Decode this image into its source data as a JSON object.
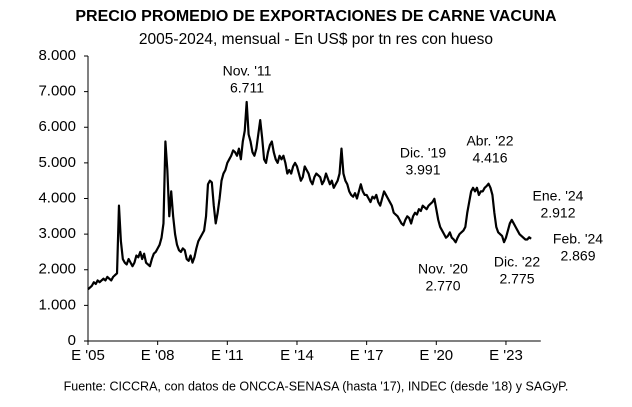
{
  "chart_data": {
    "type": "line",
    "title": "PRECIO PROMEDIO DE EXPORTACIONES DE CARNE VACUNA",
    "subtitle": "2005-2024, mensual - En US$ por tn res con hueso",
    "source": "Fuente: CICCRA, con datos de ONCCA-SENASA (hasta '17), INDEC (desde '18) y SAGyP.",
    "x": [
      0,
      1,
      2,
      3,
      4,
      5,
      6,
      7,
      8,
      9,
      10,
      11,
      12,
      13,
      14,
      15,
      16,
      17,
      18,
      19,
      20,
      21,
      22,
      23,
      24,
      25,
      26,
      27,
      28,
      29,
      30,
      31,
      32,
      33,
      34,
      35,
      36,
      37,
      38,
      39,
      40,
      41,
      42,
      43,
      44,
      45,
      46,
      47,
      48,
      49,
      50,
      51,
      52,
      53,
      54,
      55,
      56,
      57,
      58,
      59,
      60,
      61,
      62,
      63,
      64,
      65,
      66,
      67,
      68,
      69,
      70,
      71,
      72,
      73,
      74,
      75,
      76,
      77,
      78,
      79,
      80,
      81,
      82,
      83,
      84,
      85,
      86,
      87,
      88,
      89,
      90,
      91,
      92,
      93,
      94,
      95,
      96,
      97,
      98,
      99,
      100,
      101,
      102,
      103,
      104,
      105,
      106,
      107,
      108,
      109,
      110,
      111,
      112,
      113,
      114,
      115,
      116,
      117,
      118,
      119,
      120,
      121,
      122,
      123,
      124,
      125,
      126,
      127,
      128,
      129,
      130,
      131,
      132,
      133,
      134,
      135,
      136,
      137,
      138,
      139,
      140,
      141,
      142,
      143,
      144,
      145,
      146,
      147,
      148,
      149,
      150,
      151,
      152,
      153,
      154,
      155,
      156,
      157,
      158,
      159,
      160,
      161,
      162,
      163,
      164,
      165,
      166,
      167,
      168,
      169,
      170,
      171,
      172,
      173,
      174,
      175,
      176,
      177,
      178,
      179,
      180,
      181,
      182,
      183,
      184,
      185,
      186,
      187,
      188,
      189,
      190,
      191,
      192,
      193,
      194,
      195,
      196,
      197,
      198,
      199,
      200,
      201,
      202,
      203,
      204,
      205,
      206,
      207,
      208,
      209,
      210,
      211,
      212,
      213,
      214,
      215,
      216,
      217,
      218,
      219,
      220,
      221,
      222,
      223,
      224,
      225,
      226,
      227,
      228,
      229
    ],
    "series": [
      {
        "color": "#000000",
        "values": [
          1450,
          1500,
          1550,
          1650,
          1600,
          1700,
          1650,
          1700,
          1750,
          1700,
          1800,
          1750,
          1700,
          1800,
          1850,
          1900,
          3800,
          2800,
          2300,
          2200,
          2150,
          2300,
          2200,
          2100,
          2200,
          2400,
          2350,
          2500,
          2300,
          2450,
          2200,
          2150,
          2100,
          2300,
          2450,
          2500,
          2600,
          2700,
          2900,
          3300,
          5600,
          4800,
          3500,
          4200,
          3500,
          3000,
          2700,
          2550,
          2500,
          2600,
          2550,
          2300,
          2250,
          2400,
          2200,
          2350,
          2600,
          2800,
          2900,
          3000,
          3100,
          3500,
          4400,
          4500,
          4450,
          3800,
          3300,
          3600,
          4000,
          4500,
          4700,
          4800,
          5000,
          5100,
          5200,
          5350,
          5300,
          5200,
          5400,
          5100,
          5600,
          5900,
          6711,
          5800,
          5600,
          5300,
          5200,
          5400,
          5800,
          6200,
          5700,
          5100,
          5000,
          5300,
          5500,
          5600,
          5300,
          5100,
          5000,
          5200,
          5100,
          5200,
          5000,
          4700,
          4800,
          4700,
          4900,
          5000,
          4900,
          4700,
          4500,
          4600,
          4900,
          4800,
          4700,
          4500,
          4400,
          4600,
          4700,
          4650,
          4600,
          4400,
          4500,
          4700,
          4550,
          4400,
          4500,
          4300,
          4400,
          4500,
          4700,
          5400,
          4700,
          4500,
          4400,
          4200,
          4100,
          4050,
          4150,
          4000,
          4200,
          4400,
          4200,
          4100,
          4100,
          4000,
          3900,
          4050,
          4000,
          4100,
          3900,
          3800,
          4000,
          4200,
          4100,
          4000,
          3900,
          3800,
          3600,
          3550,
          3500,
          3400,
          3300,
          3250,
          3400,
          3500,
          3450,
          3300,
          3500,
          3600,
          3550,
          3700,
          3650,
          3800,
          3750,
          3700,
          3800,
          3850,
          3900,
          3991,
          3700,
          3400,
          3200,
          3100,
          3000,
          2900,
          2950,
          3050,
          2900,
          2850,
          2770,
          2900,
          3000,
          3050,
          3100,
          3200,
          3600,
          3900,
          4200,
          4300,
          4200,
          4300,
          4100,
          4200,
          4200,
          4300,
          4350,
          4416,
          4300,
          4100,
          3600,
          3200,
          3050,
          3000,
          2950,
          2775,
          2900,
          3100,
          3300,
          3400,
          3300,
          3200,
          3100,
          3000,
          2950,
          2900,
          2850,
          2850,
          2912,
          2869
        ]
      }
    ],
    "annotations": [
      {
        "x": 82,
        "label": "Nov. '11",
        "value_label": "6.711"
      },
      {
        "x": 179,
        "label": "Dic. '19",
        "value_label": "3.991"
      },
      {
        "x": 190,
        "label": "Nov. '20",
        "value_label": "2.770"
      },
      {
        "x": 207,
        "label": "Abr. '22",
        "value_label": "4.416"
      },
      {
        "x": 215,
        "label": "Dic. '22",
        "value_label": "2.775"
      },
      {
        "x": 228,
        "label": "Ene. '24",
        "value_label": "2.912"
      },
      {
        "x": 229,
        "label": "Feb. '24",
        "value_label": "2.869"
      }
    ],
    "xlim": [
      0,
      234
    ],
    "xticks": [
      {
        "value": 0,
        "label": "E '05"
      },
      {
        "value": 36,
        "label": "E '08"
      },
      {
        "value": 72,
        "label": "E '11"
      },
      {
        "value": 108,
        "label": "E '14"
      },
      {
        "value": 144,
        "label": "E '17"
      },
      {
        "value": 180,
        "label": "E '20"
      },
      {
        "value": 216,
        "label": "E '23"
      }
    ],
    "ylim": [
      0,
      8000
    ],
    "yticks": [
      0,
      {
        "value": 1000,
        "label": "1.000"
      },
      {
        "value": 2000,
        "label": "2.000"
      },
      {
        "value": 3000,
        "label": "3.000"
      },
      {
        "value": 4000,
        "label": "4.000"
      },
      {
        "value": 5000,
        "label": "5.000"
      },
      {
        "value": 6000,
        "label": "6.000"
      },
      {
        "value": 7000,
        "label": "7.000"
      },
      {
        "value": 8000,
        "label": "8.000"
      }
    ],
    "grid": false
  }
}
